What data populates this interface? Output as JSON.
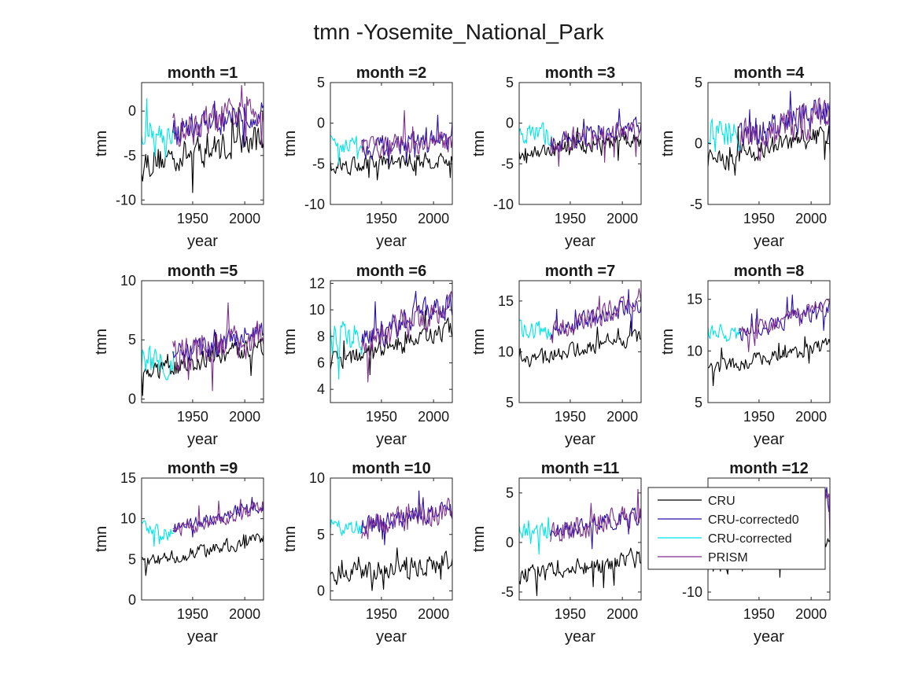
{
  "figure": {
    "title": "tmn -Yosemite_National_Park"
  },
  "legend": {
    "placement": "inside month=12 panel, left-top",
    "entries": [
      {
        "name": "CRU",
        "color": "#000000"
      },
      {
        "name": "CRU-corrected0",
        "color": "#2b0fa8"
      },
      {
        "name": "CRU-corrected",
        "color": "#00e5e5"
      },
      {
        "name": "PRISM",
        "color": "#7e2f8e"
      }
    ]
  },
  "chart_data": [
    {
      "type": "line",
      "title": "month =1",
      "xlabel": "year",
      "ylabel": "tmn",
      "xlim": [
        1901,
        2018
      ],
      "ylim": [
        -10.5,
        3.2
      ],
      "xticks": [
        1900,
        1950,
        2000
      ],
      "yticks": [
        -10,
        -5,
        0
      ],
      "series": [
        {
          "name": "CRU",
          "start": 1901,
          "end": 2018,
          "mean_start": -5.8,
          "mean_end": -3.2,
          "amp": 1.9
        },
        {
          "name": "CRU-corrected",
          "start": 1901,
          "end": 1932,
          "mean_start": -2.5,
          "mean_end": -2.4,
          "amp": 1.7
        },
        {
          "name": "CRU-corrected0",
          "start": 1931,
          "end": 2018,
          "mean_start": -2.3,
          "mean_end": 0.3,
          "amp": 1.8
        },
        {
          "name": "PRISM",
          "start": 1931,
          "end": 2018,
          "mean_start": -2.4,
          "mean_end": 0.4,
          "amp": 2.1
        }
      ]
    },
    {
      "type": "line",
      "title": "month =2",
      "xlabel": "year",
      "ylabel": "tmn",
      "xlim": [
        1901,
        2018
      ],
      "ylim": [
        -10,
        5
      ],
      "xticks": [
        1900,
        1950,
        2000
      ],
      "yticks": [
        -10,
        -5,
        0,
        5
      ],
      "series": [
        {
          "name": "CRU",
          "start": 1901,
          "end": 2018,
          "mean_start": -5.2,
          "mean_end": -4.5,
          "amp": 1.2
        },
        {
          "name": "CRU-corrected",
          "start": 1901,
          "end": 1932,
          "mean_start": -2.5,
          "mean_end": -2.6,
          "amp": 1.3
        },
        {
          "name": "CRU-corrected0",
          "start": 1931,
          "end": 2018,
          "mean_start": -3.0,
          "mean_end": -2.0,
          "amp": 1.4
        },
        {
          "name": "PRISM",
          "start": 1931,
          "end": 2018,
          "mean_start": -3.1,
          "mean_end": -2.2,
          "amp": 1.6
        }
      ]
    },
    {
      "type": "line",
      "title": "month =3",
      "xlabel": "year",
      "ylabel": "tmn",
      "xlim": [
        1901,
        2018
      ],
      "ylim": [
        -10,
        5
      ],
      "xticks": [
        1900,
        1950,
        2000
      ],
      "yticks": [
        -10,
        -5,
        0,
        5
      ],
      "series": [
        {
          "name": "CRU",
          "start": 1901,
          "end": 2018,
          "mean_start": -3.8,
          "mean_end": -2.0,
          "amp": 1.1
        },
        {
          "name": "CRU-corrected",
          "start": 1901,
          "end": 1932,
          "mean_start": -1.2,
          "mean_end": -1.6,
          "amp": 1.5
        },
        {
          "name": "CRU-corrected0",
          "start": 1931,
          "end": 2018,
          "mean_start": -2.5,
          "mean_end": -0.5,
          "amp": 1.3
        },
        {
          "name": "PRISM",
          "start": 1931,
          "end": 2018,
          "mean_start": -2.6,
          "mean_end": -0.6,
          "amp": 1.6
        }
      ]
    },
    {
      "type": "line",
      "title": "month =4",
      "xlabel": "year",
      "ylabel": "tmn",
      "xlim": [
        1901,
        2018
      ],
      "ylim": [
        -5,
        5
      ],
      "xticks": [
        1900,
        1950,
        2000
      ],
      "yticks": [
        -5,
        0,
        5
      ],
      "series": [
        {
          "name": "CRU",
          "start": 1901,
          "end": 2018,
          "mean_start": -1.5,
          "mean_end": 0.8,
          "amp": 1.0
        },
        {
          "name": "CRU-corrected",
          "start": 1901,
          "end": 1932,
          "mean_start": 0.8,
          "mean_end": 1.0,
          "amp": 1.5
        },
        {
          "name": "CRU-corrected0",
          "start": 1931,
          "end": 2018,
          "mean_start": 0.2,
          "mean_end": 2.8,
          "amp": 1.5
        },
        {
          "name": "PRISM",
          "start": 1931,
          "end": 2018,
          "mean_start": 0.0,
          "mean_end": 2.5,
          "amp": 1.9
        }
      ]
    },
    {
      "type": "line",
      "title": "month =5",
      "xlabel": "year",
      "ylabel": "tmn",
      "xlim": [
        1901,
        2018
      ],
      "ylim": [
        -0.3,
        10
      ],
      "xticks": [
        1900,
        1950,
        2000
      ],
      "yticks": [
        0,
        5,
        10
      ],
      "series": [
        {
          "name": "CRU",
          "start": 1901,
          "end": 2018,
          "mean_start": 2.0,
          "mean_end": 4.6,
          "amp": 0.9
        },
        {
          "name": "CRU-corrected",
          "start": 1901,
          "end": 1932,
          "mean_start": 3.2,
          "mean_end": 3.4,
          "amp": 1.5
        },
        {
          "name": "CRU-corrected0",
          "start": 1931,
          "end": 2018,
          "mean_start": 3.5,
          "mean_end": 5.5,
          "amp": 1.2
        },
        {
          "name": "PRISM",
          "start": 1931,
          "end": 2018,
          "mean_start": 3.6,
          "mean_end": 5.4,
          "amp": 1.7
        }
      ]
    },
    {
      "type": "line",
      "title": "month =6",
      "xlabel": "year",
      "ylabel": "tmn",
      "xlim": [
        1901,
        2018
      ],
      "ylim": [
        3,
        12.2
      ],
      "xticks": [
        1900,
        1950,
        2000
      ],
      "yticks": [
        4,
        6,
        8,
        10,
        12
      ],
      "series": [
        {
          "name": "CRU",
          "start": 1901,
          "end": 2018,
          "mean_start": 6.0,
          "mean_end": 8.6,
          "amp": 0.8
        },
        {
          "name": "CRU-corrected",
          "start": 1901,
          "end": 1932,
          "mean_start": 8.0,
          "mean_end": 7.6,
          "amp": 1.5
        },
        {
          "name": "CRU-corrected0",
          "start": 1931,
          "end": 2018,
          "mean_start": 7.6,
          "mean_end": 10.6,
          "amp": 1.1
        },
        {
          "name": "PRISM",
          "start": 1931,
          "end": 2018,
          "mean_start": 7.5,
          "mean_end": 10.5,
          "amp": 1.3
        }
      ]
    },
    {
      "type": "line",
      "title": "month =7",
      "xlabel": "year",
      "ylabel": "tmn",
      "xlim": [
        1901,
        2018
      ],
      "ylim": [
        5,
        17
      ],
      "xticks": [
        1900,
        1950,
        2000
      ],
      "yticks": [
        5,
        10,
        15
      ],
      "series": [
        {
          "name": "CRU",
          "start": 1901,
          "end": 2018,
          "mean_start": 9.0,
          "mean_end": 11.5,
          "amp": 0.8
        },
        {
          "name": "CRU-corrected",
          "start": 1901,
          "end": 1932,
          "mean_start": 12.2,
          "mean_end": 12.0,
          "amp": 1.0
        },
        {
          "name": "CRU-corrected0",
          "start": 1931,
          "end": 2018,
          "mean_start": 12.0,
          "mean_end": 14.8,
          "amp": 1.0
        },
        {
          "name": "PRISM",
          "start": 1931,
          "end": 2018,
          "mean_start": 11.8,
          "mean_end": 15.2,
          "amp": 1.2
        }
      ]
    },
    {
      "type": "line",
      "title": "month =8",
      "xlabel": "year",
      "ylabel": "tmn",
      "xlim": [
        1901,
        2018
      ],
      "ylim": [
        5,
        16.8
      ],
      "xticks": [
        1900,
        1950,
        2000
      ],
      "yticks": [
        5,
        10,
        15
      ],
      "series": [
        {
          "name": "CRU",
          "start": 1901,
          "end": 2018,
          "mean_start": 8.2,
          "mean_end": 10.5,
          "amp": 0.8
        },
        {
          "name": "CRU-corrected",
          "start": 1901,
          "end": 1932,
          "mean_start": 12.0,
          "mean_end": 11.5,
          "amp": 0.9
        },
        {
          "name": "CRU-corrected0",
          "start": 1931,
          "end": 2018,
          "mean_start": 11.6,
          "mean_end": 14.2,
          "amp": 0.9
        },
        {
          "name": "PRISM",
          "start": 1931,
          "end": 2018,
          "mean_start": 11.5,
          "mean_end": 14.6,
          "amp": 1.0
        }
      ]
    },
    {
      "type": "line",
      "title": "month =9",
      "xlabel": "year",
      "ylabel": "tmn",
      "xlim": [
        1901,
        2018
      ],
      "ylim": [
        0,
        15
      ],
      "xticks": [
        1900,
        1950,
        2000
      ],
      "yticks": [
        0,
        5,
        10,
        15
      ],
      "series": [
        {
          "name": "CRU",
          "start": 1901,
          "end": 2018,
          "mean_start": 4.5,
          "mean_end": 7.5,
          "amp": 0.9
        },
        {
          "name": "CRU-corrected",
          "start": 1901,
          "end": 1932,
          "mean_start": 8.8,
          "mean_end": 8.0,
          "amp": 1.0
        },
        {
          "name": "CRU-corrected0",
          "start": 1931,
          "end": 2018,
          "mean_start": 8.8,
          "mean_end": 11.8,
          "amp": 0.9
        },
        {
          "name": "PRISM",
          "start": 1931,
          "end": 2018,
          "mean_start": 8.5,
          "mean_end": 11.5,
          "amp": 1.1
        }
      ]
    },
    {
      "type": "line",
      "title": "month =10",
      "xlabel": "year",
      "ylabel": "tmn",
      "xlim": [
        1901,
        2018
      ],
      "ylim": [
        -0.8,
        10
      ],
      "xticks": [
        1900,
        1950,
        2000
      ],
      "yticks": [
        0,
        5,
        10
      ],
      "series": [
        {
          "name": "CRU",
          "start": 1901,
          "end": 2018,
          "mean_start": 1.5,
          "mean_end": 2.5,
          "amp": 1.0
        },
        {
          "name": "CRU-corrected",
          "start": 1901,
          "end": 1932,
          "mean_start": 5.8,
          "mean_end": 5.4,
          "amp": 0.9
        },
        {
          "name": "CRU-corrected0",
          "start": 1931,
          "end": 2018,
          "mean_start": 5.8,
          "mean_end": 7.2,
          "amp": 1.0
        },
        {
          "name": "PRISM",
          "start": 1931,
          "end": 2018,
          "mean_start": 5.6,
          "mean_end": 7.3,
          "amp": 1.3
        }
      ]
    },
    {
      "type": "line",
      "title": "month =11",
      "xlabel": "year",
      "ylabel": "tmn",
      "xlim": [
        1901,
        2018
      ],
      "ylim": [
        -5.8,
        6.5
      ],
      "xticks": [
        1900,
        1950,
        2000
      ],
      "yticks": [
        -5,
        0,
        5
      ],
      "series": [
        {
          "name": "CRU",
          "start": 1901,
          "end": 2018,
          "mean_start": -3.5,
          "mean_end": -1.5,
          "amp": 1.1
        },
        {
          "name": "CRU-corrected",
          "start": 1901,
          "end": 1932,
          "mean_start": 1.2,
          "mean_end": 1.0,
          "amp": 0.9
        },
        {
          "name": "CRU-corrected0",
          "start": 1931,
          "end": 2018,
          "mean_start": 1.2,
          "mean_end": 2.6,
          "amp": 1.0
        },
        {
          "name": "PRISM",
          "start": 1931,
          "end": 2018,
          "mean_start": 1.0,
          "mean_end": 2.8,
          "amp": 1.3
        }
      ]
    },
    {
      "type": "line",
      "title": "month =12",
      "xlabel": "year",
      "ylabel": "",
      "xlim": [
        1901,
        2018
      ],
      "ylim": [
        -11,
        4.5
      ],
      "xticks": [
        1900,
        1950,
        2000
      ],
      "yticks": [
        -10
      ],
      "series": [
        {
          "name": "CRU",
          "start": 1901,
          "end": 2018,
          "mean_start": -6.0,
          "mean_end": -3.5,
          "amp": 2.0
        },
        {
          "name": "CRU-corrected",
          "start": 1901,
          "end": 1932,
          "mean_start": -2.0,
          "mean_end": -2.0,
          "amp": 1.5
        },
        {
          "name": "CRU-corrected0",
          "start": 1931,
          "end": 2018,
          "mean_start": -2.0,
          "mean_end": 1.5,
          "amp": 2.0
        },
        {
          "name": "PRISM",
          "start": 1931,
          "end": 2018,
          "mean_start": -2.0,
          "mean_end": 2.0,
          "amp": 2.3
        }
      ]
    }
  ]
}
